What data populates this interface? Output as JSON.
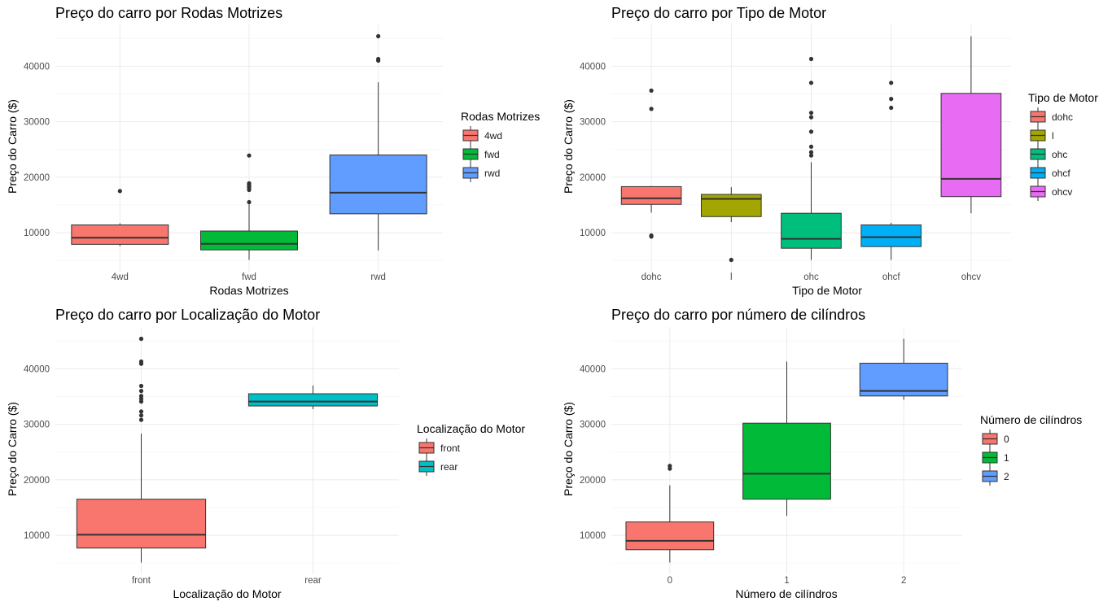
{
  "chart_data": [
    {
      "type": "boxplot",
      "title": "Preço do carro por Rodas Motrizes",
      "xlabel": "Rodas Motrizes",
      "ylabel": "Preço do Carro ($)",
      "ylim": [
        5000,
        45500
      ],
      "yticks": [
        10000,
        20000,
        30000,
        40000
      ],
      "categories": [
        "4wd",
        "fwd",
        "rwd"
      ],
      "legend": {
        "title": "Rodas Motrizes",
        "position": "right",
        "entries": [
          "4wd",
          "fwd",
          "rwd"
        ]
      },
      "boxes": [
        {
          "category": "4wd",
          "color": "#F8766D",
          "min": 7600,
          "q1": 7900,
          "median": 9100,
          "q3": 11400,
          "max": 11700,
          "outliers": [
            17500
          ]
        },
        {
          "category": "fwd",
          "color": "#00BA38",
          "min": 5100,
          "q1": 6900,
          "median": 8000,
          "q3": 10300,
          "max": 15100,
          "outliers": [
            15500,
            17700,
            18100,
            18400,
            18700,
            18900,
            23900
          ]
        },
        {
          "category": "rwd",
          "color": "#619CFF",
          "min": 6800,
          "q1": 13400,
          "median": 17200,
          "q3": 24000,
          "max": 37100,
          "outliers": [
            41000,
            41300,
            45400
          ]
        }
      ]
    },
    {
      "type": "boxplot",
      "title": "Preço do carro por Tipo de Motor",
      "xlabel": "Tipo de Motor",
      "ylabel": "Preço do Carro ($)",
      "ylim": [
        5000,
        45500
      ],
      "yticks": [
        10000,
        20000,
        30000,
        40000
      ],
      "categories": [
        "dohc",
        "l",
        "ohc",
        "ohcf",
        "ohcv"
      ],
      "legend": {
        "title": "Tipo de Motor",
        "position": "right",
        "entries": [
          "dohc",
          "l",
          "ohc",
          "ohcf",
          "ohcv"
        ]
      },
      "boxes": [
        {
          "category": "dohc",
          "color": "#F8766D",
          "min": 13600,
          "q1": 15100,
          "median": 16200,
          "q3": 18300,
          "max": 18400,
          "outliers": [
            9300,
            9500,
            32300,
            35600
          ]
        },
        {
          "category": "l",
          "color": "#A3A500",
          "min": 11900,
          "q1": 12900,
          "median": 16100,
          "q3": 16900,
          "max": 18200,
          "outliers": [
            5100
          ]
        },
        {
          "category": "ohc",
          "color": "#00BF7D",
          "min": 5100,
          "q1": 7200,
          "median": 8900,
          "q3": 13500,
          "max": 22700,
          "outliers": [
            23900,
            24500,
            25500,
            28200,
            30800,
            31600,
            37000,
            41300
          ]
        },
        {
          "category": "ohcf",
          "color": "#00B0F6",
          "min": 5100,
          "q1": 7500,
          "median": 9200,
          "q3": 11400,
          "max": 11800,
          "outliers": [
            32500,
            34100,
            37000
          ]
        },
        {
          "category": "ohcv",
          "color": "#E76BF3",
          "min": 13500,
          "q1": 16500,
          "median": 19700,
          "q3": 35100,
          "max": 45400,
          "outliers": []
        }
      ]
    },
    {
      "type": "boxplot",
      "title": "Preço do carro por Localização do Motor",
      "xlabel": "Localização do Motor",
      "ylabel": "Preço do Carro ($)",
      "ylim": [
        5000,
        45500
      ],
      "yticks": [
        10000,
        20000,
        30000,
        40000
      ],
      "categories": [
        "front",
        "rear"
      ],
      "legend": {
        "title": "Localização do Motor",
        "position": "right",
        "entries": [
          "front",
          "rear"
        ]
      },
      "boxes": [
        {
          "category": "front",
          "color": "#F8766D",
          "min": 5100,
          "q1": 7700,
          "median": 10100,
          "q3": 16500,
          "max": 28300,
          "outliers": [
            30800,
            31600,
            32300,
            34100,
            34600,
            35100,
            36000,
            36900,
            40900,
            41300,
            45400
          ]
        },
        {
          "category": "rear",
          "color": "#00BFC4",
          "min": 32700,
          "q1": 33300,
          "median": 34100,
          "q3": 35500,
          "max": 37000,
          "outliers": []
        }
      ]
    },
    {
      "type": "boxplot",
      "title": "Preço do carro por número de cilíndros",
      "xlabel": "Número de cilíndros",
      "ylabel": "Preço do Carro ($)",
      "ylim": [
        5000,
        45500
      ],
      "yticks": [
        10000,
        20000,
        30000,
        40000
      ],
      "categories": [
        "0",
        "1",
        "2"
      ],
      "legend": {
        "title": "Número de cilíndros",
        "position": "right",
        "entries": [
          "0",
          "1",
          "2"
        ]
      },
      "boxes": [
        {
          "category": "0",
          "color": "#F8766D",
          "min": 5100,
          "q1": 7400,
          "median": 9000,
          "q3": 12400,
          "max": 19000,
          "outliers": [
            22000,
            22500
          ]
        },
        {
          "category": "1",
          "color": "#00BA38",
          "min": 13500,
          "q1": 16500,
          "median": 21100,
          "q3": 30200,
          "max": 41300,
          "outliers": []
        },
        {
          "category": "2",
          "color": "#619CFF",
          "min": 34400,
          "q1": 35100,
          "median": 36000,
          "q3": 41000,
          "max": 45400,
          "outliers": []
        }
      ]
    }
  ]
}
